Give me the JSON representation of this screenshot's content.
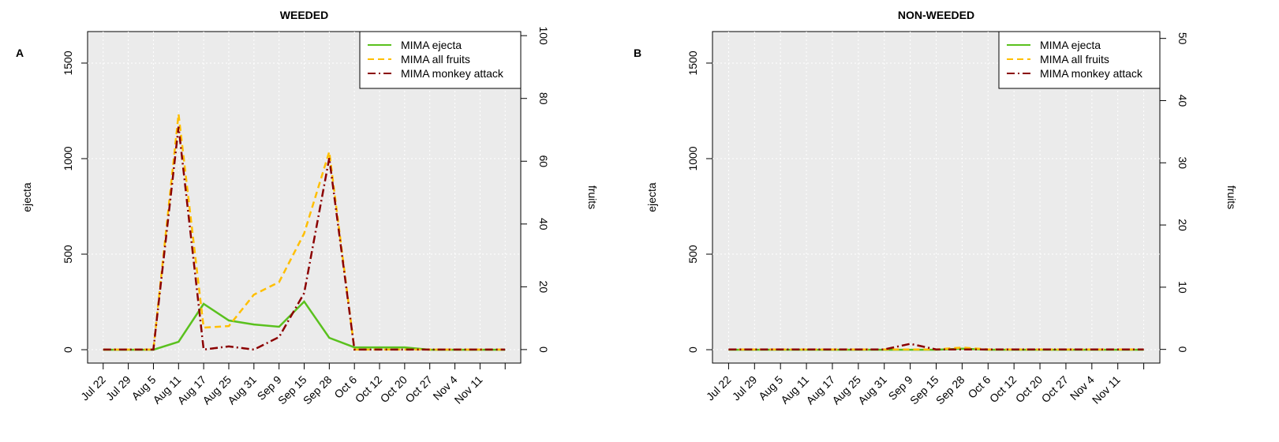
{
  "chart_data": [
    {
      "type": "line",
      "panel_label": "A",
      "title": "WEEDED",
      "y_label": "ejecta",
      "y2_label": "fruits",
      "categories": [
        "Jul 22",
        "Jul 29",
        "Aug 5",
        "Aug 11",
        "Aug 17",
        "Aug 25",
        "Aug 31",
        "Sep 9",
        "Sep 15",
        "Sep 28",
        "Oct 6",
        "Oct 12",
        "Oct 20",
        "Oct 27",
        "Nov 4",
        "Nov 11",
        null
      ],
      "ylim": [
        -70,
        1665
      ],
      "yticks": [
        0,
        500,
        1000,
        1500
      ],
      "y2lim": [
        -4.3,
        101.3
      ],
      "y2ticks": [
        0,
        20,
        40,
        60,
        80,
        100
      ],
      "grid": true,
      "legend": "top-right",
      "series": [
        {
          "name": "MIMA ejecta",
          "color": "#5ac11e",
          "dash": "solid",
          "values": [
            0,
            0,
            0,
            41,
            240,
            153,
            132,
            120,
            252,
            62,
            12,
            12,
            12,
            0,
            0,
            0,
            0
          ]
        },
        {
          "name": "MIMA all fruits",
          "color": "#ffbf00",
          "dash": "dashed",
          "axis": "y2",
          "values": [
            0,
            0,
            0,
            75,
            7,
            7.5,
            17.5,
            21.5,
            37,
            63,
            0,
            0,
            0,
            0,
            0,
            0,
            0
          ]
        },
        {
          "name": "MIMA monkey attack",
          "color": "#8b0000",
          "dash": "dashdot",
          "axis": "y2",
          "values": [
            0,
            0,
            0,
            71,
            0,
            1,
            0,
            4,
            18,
            61,
            0,
            0,
            0,
            0,
            0,
            0,
            0
          ]
        }
      ]
    },
    {
      "type": "line",
      "panel_label": "B",
      "title": "NON-WEEDED",
      "y_label": "ejecta",
      "y2_label": "fruits",
      "categories": [
        "Jul 22",
        "Jul 29",
        "Aug 5",
        "Aug 11",
        "Aug 17",
        "Aug 25",
        "Aug 31",
        "Sep 9",
        "Sep 15",
        "Sep 28",
        "Oct 6",
        "Oct 12",
        "Oct 20",
        "Oct 27",
        "Nov 4",
        "Nov 11",
        null
      ],
      "ylim": [
        -70,
        1665
      ],
      "yticks": [
        0,
        500,
        1000,
        1500
      ],
      "y2lim": [
        -2.2,
        51.1
      ],
      "y2ticks": [
        0,
        10,
        20,
        30,
        40,
        50
      ],
      "grid": true,
      "legend": "top-right",
      "series": [
        {
          "name": "MIMA ejecta",
          "color": "#5ac11e",
          "dash": "solid",
          "values": [
            0,
            0,
            0,
            0,
            0,
            0,
            0,
            0,
            0,
            5,
            0,
            0,
            0,
            0,
            0,
            0,
            0
          ]
        },
        {
          "name": "MIMA all fruits",
          "color": "#ffbf00",
          "dash": "dashed",
          "axis": "y2",
          "values": [
            0,
            0,
            0,
            0,
            0,
            0,
            0,
            0,
            0,
            0.3,
            0,
            0,
            0,
            0,
            0,
            0,
            0
          ]
        },
        {
          "name": "MIMA monkey attack",
          "color": "#8b0000",
          "dash": "dashdot",
          "axis": "y2",
          "values": [
            0,
            0,
            0,
            0,
            0,
            0,
            0,
            0.9,
            0,
            0,
            0,
            0,
            0,
            0,
            0,
            0,
            0
          ]
        }
      ]
    }
  ]
}
